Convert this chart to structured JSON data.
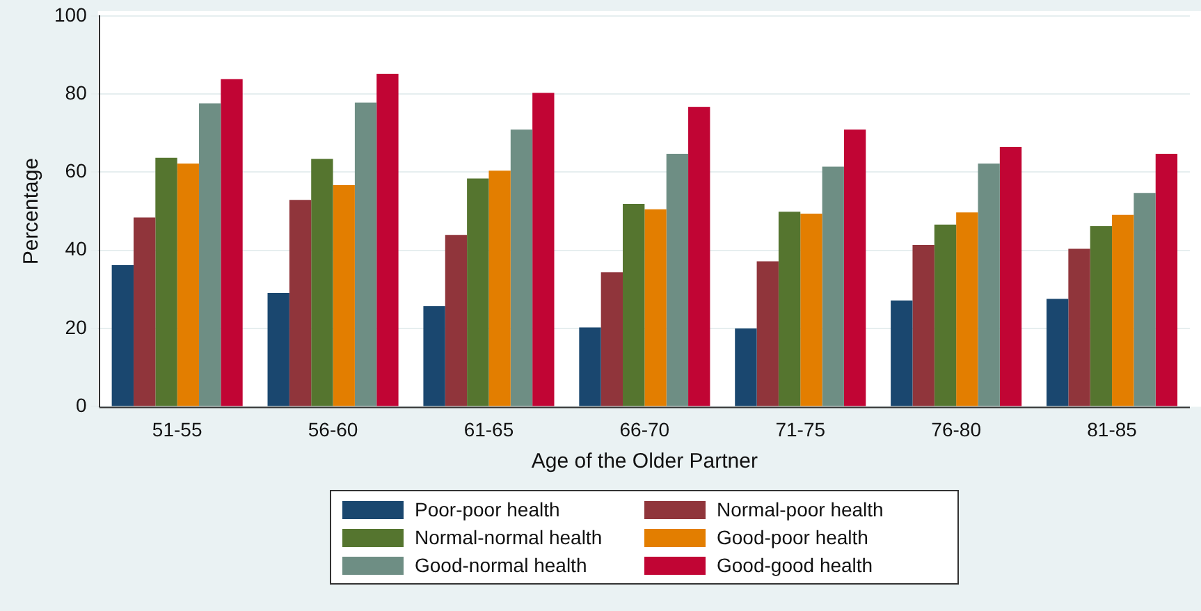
{
  "chart_data": {
    "type": "bar",
    "xlabel": "Age of the Older Partner",
    "ylabel": "Percentage",
    "categories": [
      "51-55",
      "56-60",
      "61-65",
      "66-70",
      "71-75",
      "76-80",
      "81-85"
    ],
    "ylim": [
      0,
      100
    ],
    "yticks": [
      0,
      20,
      40,
      60,
      80,
      100
    ],
    "grid": "y",
    "legend": "bottom",
    "series": [
      {
        "name": "Poor-poor health",
        "color": "#1a476f",
        "values": [
          36.2,
          29.1,
          25.7,
          20.3,
          20.0,
          27.2,
          27.6
        ]
      },
      {
        "name": "Normal-poor health",
        "color": "#90353b",
        "values": [
          48.4,
          52.9,
          43.9,
          34.4,
          37.2,
          41.4,
          40.4
        ]
      },
      {
        "name": "Normal-normal health",
        "color": "#55752f",
        "values": [
          63.7,
          63.4,
          58.4,
          51.9,
          49.9,
          46.6,
          46.2
        ]
      },
      {
        "name": "Good-poor health",
        "color": "#e37e00",
        "values": [
          62.2,
          56.7,
          60.4,
          50.5,
          49.4,
          49.7,
          49.1
        ]
      },
      {
        "name": "Good-normal health",
        "color": "#6e8e84",
        "values": [
          77.6,
          77.8,
          70.9,
          64.7,
          61.4,
          62.2,
          54.7
        ]
      },
      {
        "name": "Good-good health",
        "color": "#c10534",
        "values": [
          83.8,
          85.2,
          80.3,
          76.7,
          70.9,
          66.5,
          64.7
        ]
      }
    ]
  }
}
